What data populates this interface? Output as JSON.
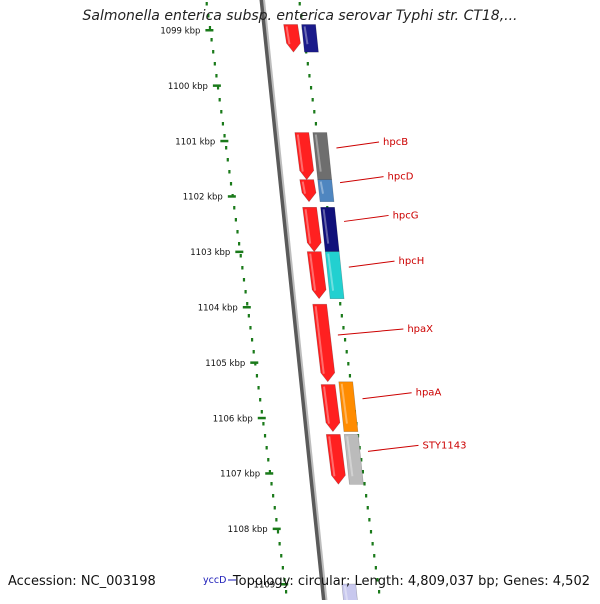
{
  "title": "Salmonella enterica subsp. enterica serovar Typhi str. CT18,...",
  "footer": {
    "accession": "Accession: NC_003198",
    "summary": "Topology: circular; Length: 4,809,037 bp; Genes: 4,502"
  },
  "ticks": [
    {
      "label": "1099 kbp",
      "kbp": 1099
    },
    {
      "label": "1100 kbp",
      "kbp": 1100
    },
    {
      "label": "1101 kbp",
      "kbp": 1101
    },
    {
      "label": "1102 kbp",
      "kbp": 1102
    },
    {
      "label": "1103 kbp",
      "kbp": 1103
    },
    {
      "label": "1104 kbp",
      "kbp": 1104
    },
    {
      "label": "1105 kbp",
      "kbp": 1105
    },
    {
      "label": "1106 kbp",
      "kbp": 1106
    },
    {
      "label": "1107 kbp",
      "kbp": 1107
    },
    {
      "label": "1108 kbp",
      "kbp": 1108
    },
    {
      "label": "1109",
      "kbp": 1109
    }
  ],
  "genes": [
    {
      "label": "",
      "start": 1098.9,
      "end": 1099.4,
      "color": "#ff2020",
      "track": "inner"
    },
    {
      "label": "",
      "start": 1098.9,
      "end": 1099.4,
      "color": "#1a1a8a",
      "track": "outer"
    },
    {
      "label": "hpcB",
      "start": 1100.85,
      "end": 1101.7,
      "color": "#6e6e6e",
      "track": "outer"
    },
    {
      "label": "",
      "start": 1100.85,
      "end": 1101.7,
      "color": "#ff2020",
      "track": "inner"
    },
    {
      "label": "hpcD",
      "start": 1101.7,
      "end": 1102.1,
      "color": "#4f86c0",
      "track": "outer"
    },
    {
      "label": "",
      "start": 1101.7,
      "end": 1102.1,
      "color": "#ff2020",
      "track": "inner"
    },
    {
      "label": "hpcG",
      "start": 1102.2,
      "end": 1103.0,
      "color": "#10107a",
      "track": "outer"
    },
    {
      "label": "",
      "start": 1102.2,
      "end": 1103.0,
      "color": "#ff2020",
      "track": "inner"
    },
    {
      "label": "hpcH",
      "start": 1103.0,
      "end": 1103.85,
      "color": "#22d0d0",
      "track": "outer"
    },
    {
      "label": "",
      "start": 1103.0,
      "end": 1103.85,
      "color": "#ff2020",
      "track": "inner"
    },
    {
      "label": "hpaX",
      "start": 1103.95,
      "end": 1105.35,
      "color": "#ff2020",
      "track": "inner"
    },
    {
      "label": "hpaA",
      "start": 1105.35,
      "end": 1106.25,
      "color": "#ff8c00",
      "track": "outer"
    },
    {
      "label": "",
      "start": 1105.4,
      "end": 1106.25,
      "color": "#ff2020",
      "track": "inner"
    },
    {
      "label": "STY1143",
      "start": 1106.3,
      "end": 1107.2,
      "color": "#bbbbbb",
      "track": "outer"
    },
    {
      "label": "",
      "start": 1106.3,
      "end": 1107.2,
      "color": "#ff2020",
      "track": "inner"
    },
    {
      "label": "",
      "start": 1109.0,
      "end": 1109.5,
      "color": "#c8c8ee",
      "track": "inner"
    },
    {
      "label": "",
      "start": 1109.3,
      "end": 1109.5,
      "color": "#1a1ab8",
      "track": "inner2"
    },
    {
      "label": "",
      "start": 1109.3,
      "end": 1109.5,
      "color": "#c9b87a",
      "track": "far-inner"
    }
  ],
  "side_label": {
    "label": "yccD",
    "color": "#1a1ab8"
  },
  "colors": {
    "gene_label": "#cc0000",
    "tick": "#1a7a1a",
    "backbone": "#888888",
    "arrow_forward": "#ff2020"
  }
}
